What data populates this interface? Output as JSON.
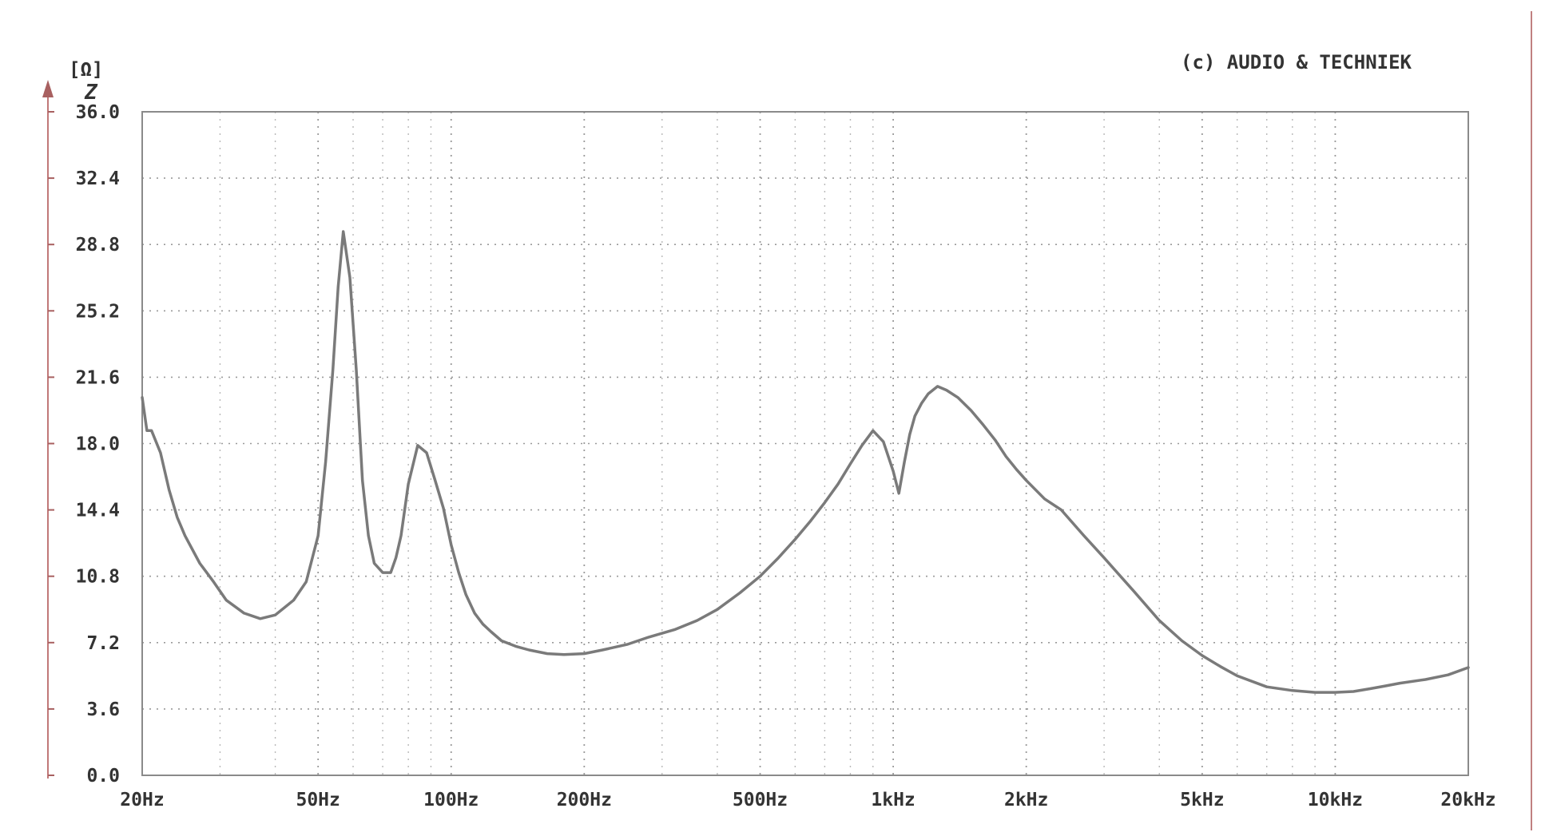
{
  "chart_data": {
    "type": "line",
    "copyright": "(c) AUDIO & TECHNIEK",
    "ylabel_unit": "[Ω]",
    "ylabel": "Z",
    "x_scale": "log",
    "xlim": [
      20,
      20000
    ],
    "ylim": [
      0,
      36
    ],
    "x_tick_values": [
      20,
      50,
      100,
      200,
      500,
      1000,
      2000,
      5000,
      10000,
      20000
    ],
    "x_tick_labels": [
      "20Hz",
      "50Hz",
      "100Hz",
      "200Hz",
      "500Hz",
      "1kHz",
      "2kHz",
      "5kHz",
      "10kHz",
      "20kHz"
    ],
    "y_tick_values": [
      0,
      3.6,
      7.2,
      10.8,
      14.4,
      18,
      21.6,
      25.2,
      28.8,
      32.4,
      36
    ],
    "y_tick_labels": [
      "0.0",
      "3.6",
      "7.2",
      "10.8",
      "14.4",
      "18.0",
      "21.6",
      "25.2",
      "28.8",
      "32.4",
      "36.0"
    ],
    "grid": true,
    "series": [
      {
        "x": [
          20,
          20.5,
          21,
          22,
          23,
          24,
          25,
          27,
          29,
          31,
          34,
          37,
          40,
          44,
          47,
          50,
          52,
          54,
          55.5,
          57,
          59,
          61,
          63,
          65,
          67,
          70,
          73,
          75,
          77,
          80,
          84,
          88,
          92,
          96,
          100,
          104,
          108,
          113,
          118,
          123,
          130,
          140,
          150,
          165,
          180,
          200,
          220,
          250,
          280,
          320,
          360,
          400,
          450,
          500,
          550,
          600,
          650,
          700,
          750,
          800,
          850,
          900,
          950,
          1000,
          1030,
          1060,
          1090,
          1120,
          1160,
          1200,
          1260,
          1320,
          1400,
          1500,
          1600,
          1700,
          1800,
          1900,
          2000,
          2200,
          2400,
          2700,
          3000,
          3500,
          4000,
          4500,
          5000,
          5500,
          6000,
          7000,
          8000,
          9000,
          10000,
          11000,
          12000,
          13000,
          14000,
          16000,
          18000,
          20000
        ],
        "y": [
          20.5,
          18.7,
          18.7,
          17.5,
          15.5,
          14.0,
          13.0,
          11.5,
          10.5,
          9.5,
          8.8,
          8.5,
          8.7,
          9.5,
          10.5,
          13.0,
          17.0,
          22.0,
          26.5,
          29.5,
          27.0,
          22.0,
          16.0,
          13.0,
          11.5,
          11.0,
          11.0,
          11.8,
          13.0,
          15.8,
          17.9,
          17.5,
          16.0,
          14.5,
          12.5,
          11.0,
          9.8,
          8.8,
          8.2,
          7.8,
          7.3,
          7.0,
          6.8,
          6.6,
          6.55,
          6.6,
          6.8,
          7.1,
          7.5,
          7.9,
          8.4,
          9.0,
          9.9,
          10.8,
          11.8,
          12.8,
          13.8,
          14.8,
          15.8,
          16.9,
          17.9,
          18.7,
          18.1,
          16.5,
          15.3,
          17.0,
          18.5,
          19.5,
          20.2,
          20.7,
          21.1,
          20.9,
          20.5,
          19.8,
          19.0,
          18.2,
          17.3,
          16.6,
          16.0,
          15.0,
          14.4,
          13.0,
          11.8,
          10.0,
          8.4,
          7.3,
          6.5,
          5.9,
          5.4,
          4.8,
          4.6,
          4.5,
          4.5,
          4.55,
          4.7,
          4.85,
          5.0,
          5.2,
          5.45,
          5.85
        ]
      }
    ]
  }
}
